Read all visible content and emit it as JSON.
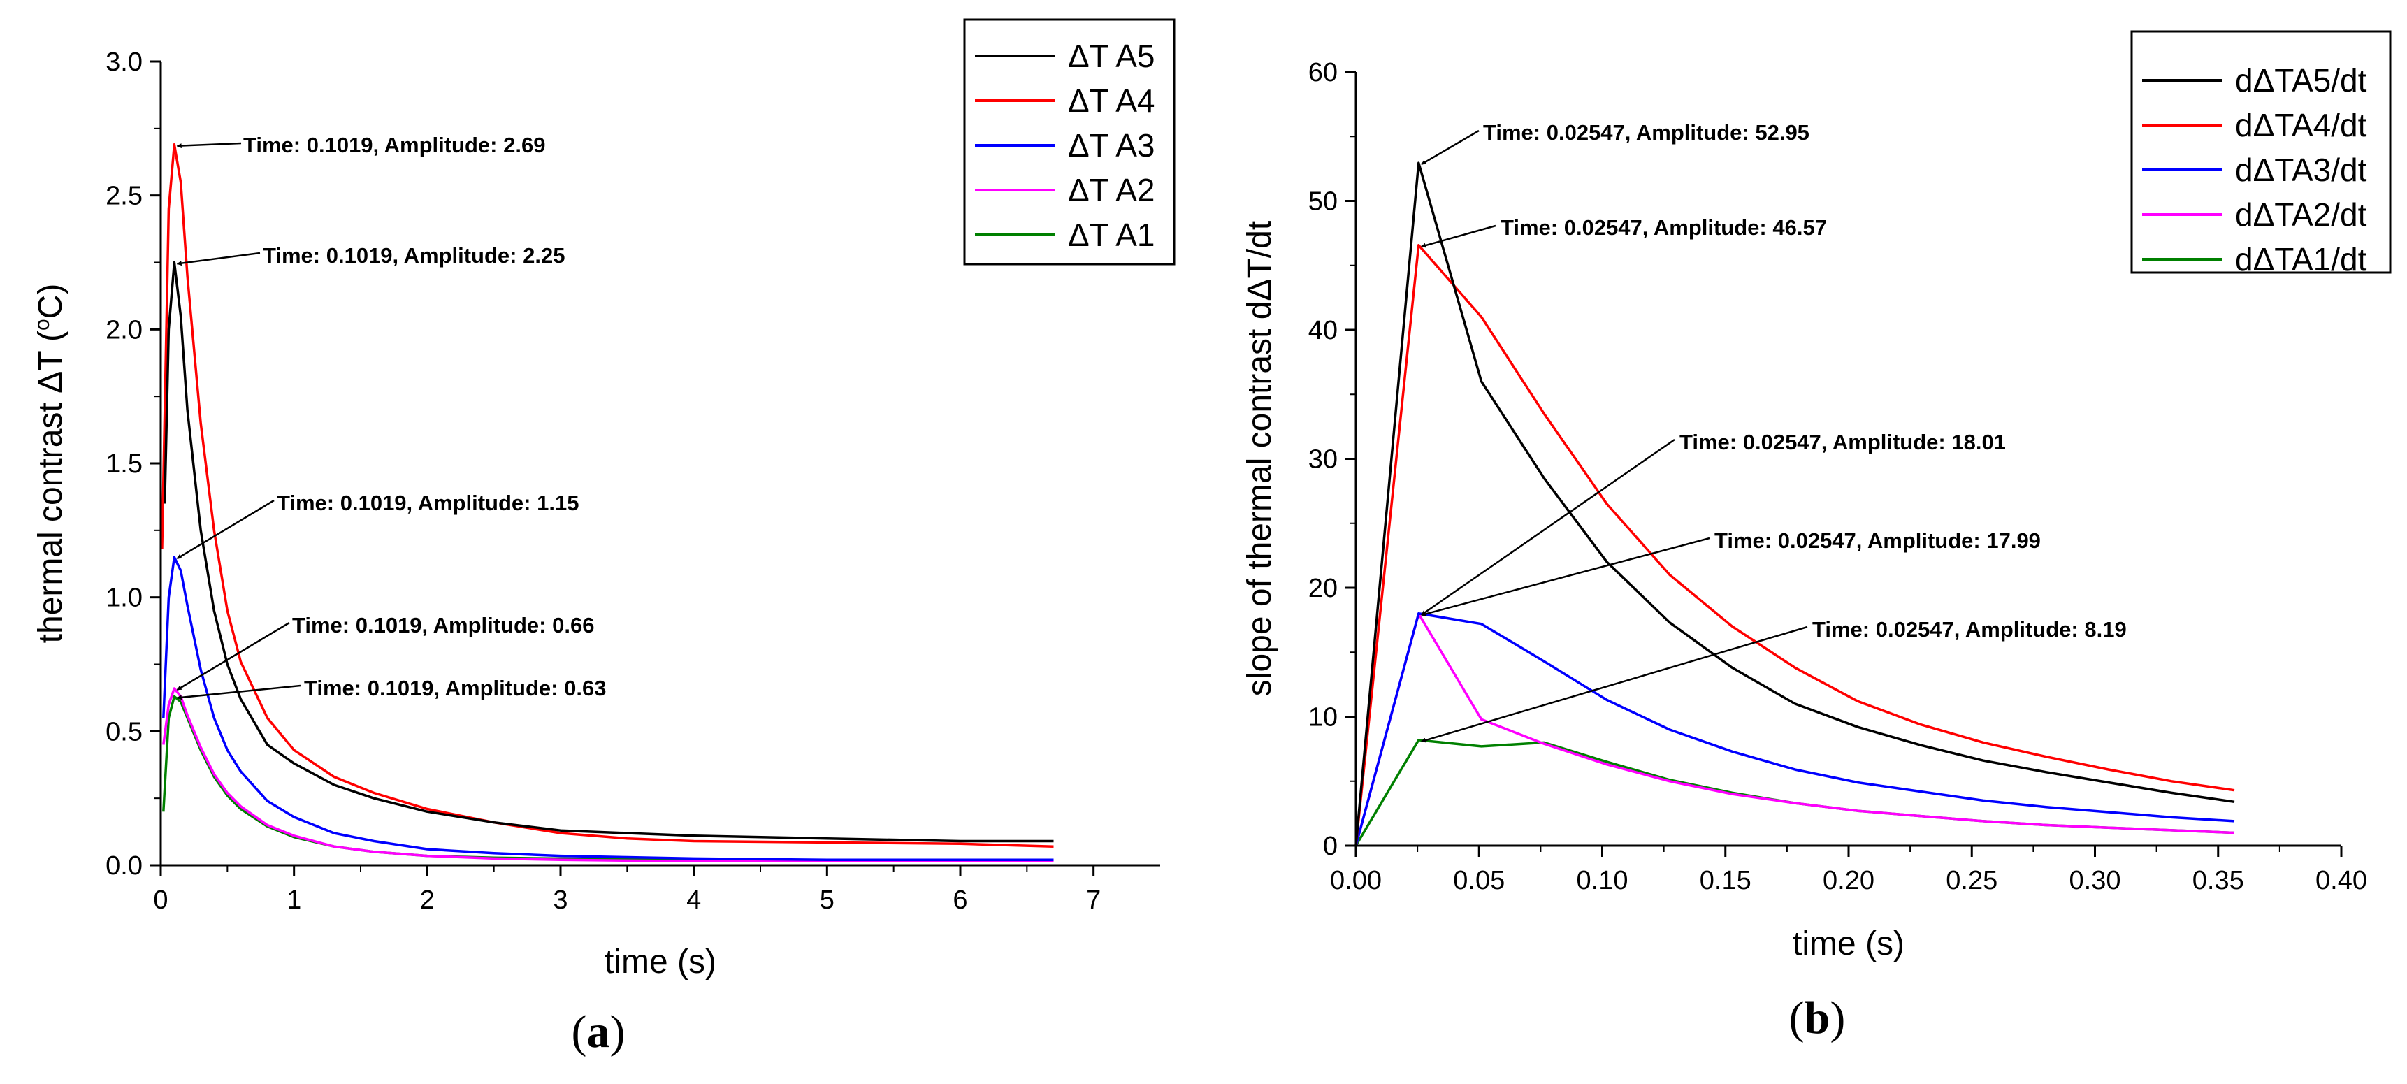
{
  "chart_data": [
    {
      "id": "a",
      "type": "line",
      "panel_label": "a",
      "xlabel": "time (s)",
      "ylabel": "thermal contrast ΔT (°C)",
      "ylabel_parts": {
        "main": "thermal contrast ΔT (",
        "sup": "o",
        "tail": "C)"
      },
      "xlim": [
        0,
        7.5
      ],
      "ylim": [
        0,
        3.0
      ],
      "xticks": [
        0,
        1,
        2,
        3,
        4,
        5,
        6,
        7
      ],
      "xtick_labels": [
        "0",
        "1",
        "2",
        "3",
        "4",
        "5",
        "6",
        "7"
      ],
      "yticks": [
        0,
        0.5,
        1.0,
        1.5,
        2.0,
        2.5,
        3.0
      ],
      "ytick_labels": [
        "0.0",
        "0.5",
        "1.0",
        "1.5",
        "2.0",
        "2.5",
        "3.0"
      ],
      "legend_position": "top-right",
      "series": [
        {
          "name": "ΔT A5",
          "color": "#000000",
          "x": [
            0.03,
            0.06,
            0.1019,
            0.15,
            0.2,
            0.3,
            0.4,
            0.5,
            0.6,
            0.8,
            1.0,
            1.3,
            1.6,
            2.0,
            2.5,
            3.0,
            3.5,
            4.0,
            5.0,
            6.0,
            6.7
          ],
          "y": [
            1.35,
            2.0,
            2.25,
            2.05,
            1.7,
            1.25,
            0.95,
            0.75,
            0.62,
            0.45,
            0.38,
            0.3,
            0.25,
            0.2,
            0.16,
            0.13,
            0.12,
            0.11,
            0.1,
            0.09,
            0.09
          ]
        },
        {
          "name": "ΔT A4",
          "color": "#ff0000",
          "x": [
            0.01,
            0.06,
            0.1019,
            0.15,
            0.2,
            0.3,
            0.4,
            0.5,
            0.6,
            0.8,
            1.0,
            1.3,
            1.6,
            2.0,
            2.5,
            3.0,
            3.5,
            4.0,
            5.0,
            6.0,
            6.7
          ],
          "y": [
            1.18,
            2.45,
            2.69,
            2.55,
            2.2,
            1.65,
            1.25,
            0.95,
            0.76,
            0.55,
            0.43,
            0.33,
            0.27,
            0.21,
            0.16,
            0.12,
            0.1,
            0.09,
            0.085,
            0.08,
            0.07
          ]
        },
        {
          "name": "ΔT A3",
          "color": "#0000ff",
          "x": [
            0.02,
            0.06,
            0.1019,
            0.15,
            0.2,
            0.3,
            0.4,
            0.5,
            0.6,
            0.8,
            1.0,
            1.3,
            1.6,
            2.0,
            2.5,
            3.0,
            3.5,
            4.0,
            5.0,
            6.0,
            6.7
          ],
          "y": [
            0.55,
            1.0,
            1.15,
            1.1,
            0.97,
            0.73,
            0.55,
            0.43,
            0.35,
            0.24,
            0.18,
            0.12,
            0.09,
            0.06,
            0.045,
            0.035,
            0.03,
            0.025,
            0.02,
            0.02,
            0.02
          ]
        },
        {
          "name": "ΔT A2",
          "color": "#ff00ff",
          "x": [
            0.02,
            0.06,
            0.1019,
            0.15,
            0.2,
            0.3,
            0.4,
            0.5,
            0.6,
            0.8,
            1.0,
            1.3,
            1.6,
            2.0,
            2.5,
            3.0,
            4.0,
            5.0,
            6.0,
            6.7
          ],
          "y": [
            0.45,
            0.6,
            0.66,
            0.63,
            0.56,
            0.44,
            0.34,
            0.27,
            0.22,
            0.15,
            0.11,
            0.07,
            0.05,
            0.035,
            0.025,
            0.02,
            0.015,
            0.015,
            0.015,
            0.015
          ]
        },
        {
          "name": "ΔT A1",
          "color": "#008000",
          "x": [
            0.02,
            0.06,
            0.1019,
            0.15,
            0.2,
            0.3,
            0.4,
            0.5,
            0.6,
            0.8,
            1.0,
            1.3,
            1.6,
            2.0,
            2.5,
            3.0,
            4.0,
            5.0,
            6.0,
            6.7
          ],
          "y": [
            0.2,
            0.55,
            0.63,
            0.61,
            0.55,
            0.43,
            0.33,
            0.26,
            0.21,
            0.145,
            0.105,
            0.07,
            0.05,
            0.035,
            0.028,
            0.025,
            0.02,
            0.02,
            0.02,
            0.02
          ]
        }
      ],
      "annotations": [
        {
          "text": "Time: 0.1019, Amplitude: 2.69",
          "x": 0.1019,
          "y": 2.69
        },
        {
          "text": "Time: 0.1019, Amplitude: 2.25",
          "x": 0.1019,
          "y": 2.25
        },
        {
          "text": "Time: 0.1019, Amplitude: 1.15",
          "x": 0.1019,
          "y": 1.15
        },
        {
          "text": "Time: 0.1019, Amplitude: 0.66",
          "x": 0.1019,
          "y": 0.66
        },
        {
          "text": "Time: 0.1019, Amplitude: 0.63",
          "x": 0.1019,
          "y": 0.63
        }
      ]
    },
    {
      "id": "b",
      "type": "line",
      "panel_label": "b",
      "xlabel": "time (s)",
      "ylabel": "slope of thermal contrast dΔT/dt",
      "xlim": [
        0,
        0.4
      ],
      "ylim": [
        0,
        60
      ],
      "xticks": [
        0,
        0.05,
        0.1,
        0.15,
        0.2,
        0.25,
        0.3,
        0.35,
        0.4
      ],
      "xtick_labels": [
        "0.00",
        "0.05",
        "0.10",
        "0.15",
        "0.20",
        "0.25",
        "0.30",
        "0.35",
        "0.40"
      ],
      "yticks": [
        0,
        10,
        20,
        30,
        40,
        50,
        60
      ],
      "ytick_labels": [
        "0",
        "10",
        "20",
        "30",
        "40",
        "50",
        "60"
      ],
      "legend_position": "top-right",
      "series": [
        {
          "name": "dΔTA5/dt",
          "color": "#000000",
          "x": [
            0,
            0.02547,
            0.05094,
            0.0764,
            0.1019,
            0.1274,
            0.1528,
            0.1783,
            0.2038,
            0.2292,
            0.2547,
            0.2802,
            0.3056,
            0.3311,
            0.3566
          ],
          "y": [
            0,
            52.95,
            36.0,
            28.5,
            22.0,
            17.3,
            13.8,
            11.0,
            9.2,
            7.8,
            6.6,
            5.7,
            4.9,
            4.1,
            3.4
          ]
        },
        {
          "name": "dΔTA4/dt",
          "color": "#ff0000",
          "x": [
            0,
            0.02547,
            0.05094,
            0.0764,
            0.1019,
            0.1274,
            0.1528,
            0.1783,
            0.2038,
            0.2292,
            0.2547,
            0.2802,
            0.3056,
            0.3311,
            0.3566
          ],
          "y": [
            0,
            46.57,
            41.0,
            33.5,
            26.5,
            21.0,
            17.0,
            13.8,
            11.2,
            9.4,
            8.0,
            6.9,
            5.9,
            5.0,
            4.3
          ]
        },
        {
          "name": "dΔTA3/dt",
          "color": "#0000ff",
          "x": [
            0,
            0.02547,
            0.05094,
            0.0764,
            0.1019,
            0.1274,
            0.1528,
            0.1783,
            0.2038,
            0.2292,
            0.2547,
            0.2802,
            0.3056,
            0.3311,
            0.3566
          ],
          "y": [
            0,
            18.01,
            17.2,
            14.3,
            11.3,
            9.0,
            7.3,
            5.9,
            4.9,
            4.2,
            3.5,
            3.0,
            2.6,
            2.2,
            1.9
          ]
        },
        {
          "name": "dΔTA2/dt",
          "color": "#ff00ff",
          "x": [
            0,
            0.02547,
            0.05094,
            0.0764,
            0.1019,
            0.1274,
            0.1528,
            0.1783,
            0.2038,
            0.2292,
            0.2547,
            0.2802,
            0.3056,
            0.3311,
            0.3566
          ],
          "y": [
            0,
            17.99,
            9.8,
            7.9,
            6.3,
            5.0,
            4.0,
            3.3,
            2.7,
            2.3,
            1.9,
            1.6,
            1.4,
            1.2,
            1.0
          ]
        },
        {
          "name": "dΔTA1/dt",
          "color": "#008000",
          "x": [
            0,
            0.02547,
            0.05094,
            0.0764,
            0.1019,
            0.1274,
            0.1528,
            0.1783,
            0.2038,
            0.2292,
            0.2547,
            0.2802,
            0.3056,
            0.3311,
            0.3566
          ],
          "y": [
            0,
            8.19,
            7.7,
            8.0,
            6.5,
            5.1,
            4.1,
            3.3,
            2.7,
            2.3,
            1.9,
            1.6,
            1.4,
            1.2,
            1.0
          ]
        }
      ],
      "annotations": [
        {
          "text": "Time: 0.02547, Amplitude: 52.95",
          "x": 0.02547,
          "y": 52.95
        },
        {
          "text": "Time: 0.02547, Amplitude: 46.57",
          "x": 0.02547,
          "y": 46.57
        },
        {
          "text": "Time: 0.02547, Amplitude: 18.01",
          "x": 0.02547,
          "y": 18.01
        },
        {
          "text": "Time: 0.02547, Amplitude: 17.99",
          "x": 0.02547,
          "y": 17.99
        },
        {
          "text": "Time: 0.02547, Amplitude: 8.19",
          "x": 0.02547,
          "y": 8.19
        }
      ]
    }
  ]
}
